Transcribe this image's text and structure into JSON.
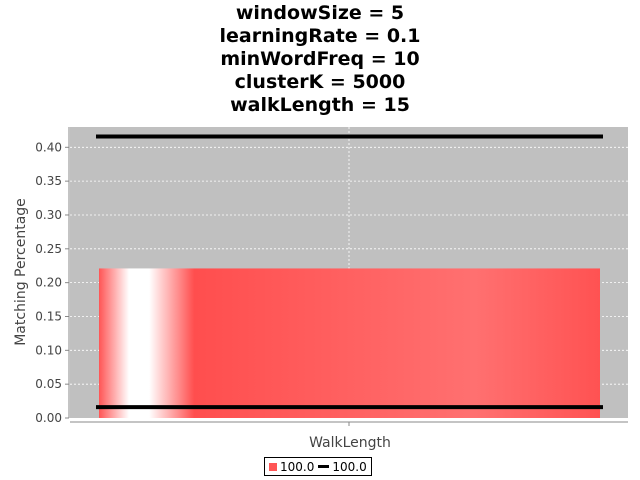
{
  "title_lines": [
    "windowSize = 5",
    "learningRate = 0.1",
    "minWordFreq = 10",
    "clusterK = 5000",
    "walkLength = 15"
  ],
  "chart_data": {
    "type": "bar",
    "categories": [
      "WalkLength"
    ],
    "xlabel": "WalkLength",
    "ylabel": "Matching Percentage",
    "ylim": [
      0,
      0.43
    ],
    "yticks": [
      "0.00",
      "0.05",
      "0.10",
      "0.15",
      "0.20",
      "0.25",
      "0.30",
      "0.35",
      "0.40"
    ],
    "grid": true,
    "legend_position": "bottom",
    "series": [
      {
        "name": "100.0",
        "kind": "bar",
        "values": [
          0.221
        ],
        "color": "#ff5555"
      },
      {
        "name": "100.0",
        "kind": "line",
        "values": [
          0.416
        ],
        "color": "#000000"
      },
      {
        "name": "100.0",
        "kind": "line",
        "values": [
          0.016
        ],
        "color": "#000000"
      }
    ],
    "plot_background": "#c0c0c0",
    "legend": [
      {
        "label": "100.0",
        "kind": "bar",
        "color": "#ff5555"
      },
      {
        "label": "100.0",
        "kind": "line",
        "color": "#000000"
      }
    ]
  }
}
